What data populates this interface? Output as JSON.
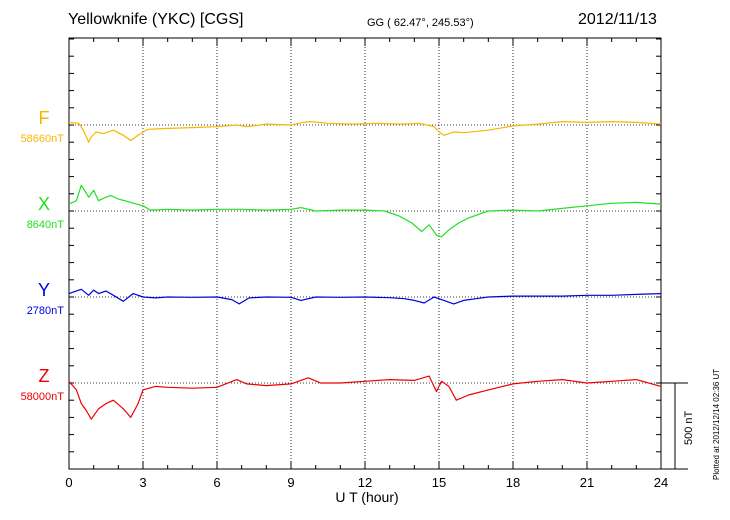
{
  "header": {
    "station": "Yellowknife (YKC)  [CGS]",
    "coords": "GG ( 62.47°, 245.53°)",
    "date": "2012/11/13"
  },
  "plotted_note": "Plotted at 2012/12/14 02:36 UT",
  "chart_data": {
    "type": "line",
    "xlabel": "U T (hour)",
    "xlim": [
      0,
      24
    ],
    "xticks": [
      "0",
      "3",
      "6",
      "9",
      "12",
      "15",
      "18",
      "21",
      "24"
    ],
    "scale_bar_label": "500 nT",
    "scale_bar_nT": 500,
    "series": [
      {
        "name": "F",
        "baseline_label": "58660nT",
        "baseline_nT": 58660,
        "color": "#f5b800",
        "x": [
          0,
          0.4,
          0.6,
          0.8,
          0.9,
          1.1,
          1.4,
          1.8,
          2.2,
          2.5,
          2.8,
          3.2,
          4,
          5,
          6,
          6.8,
          7.2,
          8,
          9,
          9.5,
          9.8,
          10.5,
          11.5,
          12.5,
          13.5,
          14.2,
          14.8,
          15.0,
          15.2,
          15.6,
          16.0,
          17,
          18,
          19,
          20,
          21,
          22,
          23,
          24
        ],
        "y": [
          58675,
          58670,
          58625,
          58560,
          58590,
          58620,
          58610,
          58630,
          58600,
          58570,
          58600,
          58635,
          58640,
          58645,
          58650,
          58660,
          58650,
          58665,
          58660,
          58675,
          58680,
          58670,
          58665,
          58670,
          58665,
          58670,
          58650,
          58620,
          58600,
          58620,
          58615,
          58630,
          58655,
          58665,
          58680,
          58675,
          58680,
          58675,
          58665
        ]
      },
      {
        "name": "X",
        "baseline_label": "8640nT",
        "baseline_nT": 8640,
        "color": "#22e022",
        "x": [
          0,
          0.3,
          0.5,
          0.8,
          1.0,
          1.2,
          1.5,
          1.7,
          2.0,
          2.5,
          3.0,
          3.3,
          4,
          5,
          6,
          7,
          8,
          9,
          9.4,
          10,
          11,
          12,
          12.8,
          13.4,
          13.9,
          14.3,
          14.6,
          14.9,
          15.1,
          15.4,
          15.8,
          16.2,
          17,
          18,
          19,
          20,
          21,
          22,
          23,
          24
        ],
        "y": [
          8680,
          8700,
          8790,
          8720,
          8760,
          8700,
          8720,
          8730,
          8710,
          8690,
          8670,
          8645,
          8650,
          8645,
          8650,
          8650,
          8645,
          8650,
          8660,
          8640,
          8645,
          8645,
          8640,
          8610,
          8570,
          8520,
          8560,
          8500,
          8490,
          8530,
          8570,
          8600,
          8640,
          8645,
          8640,
          8655,
          8670,
          8685,
          8690,
          8680
        ]
      },
      {
        "name": "Y",
        "baseline_label": "2780nT",
        "baseline_nT": 2780,
        "color": "#0000dd",
        "x": [
          0,
          0.5,
          0.8,
          1.0,
          1.2,
          1.5,
          1.8,
          2.2,
          2.6,
          3.0,
          3.5,
          4,
          5,
          6,
          6.6,
          6.9,
          7.3,
          8,
          9,
          9.4,
          10,
          11,
          12,
          13,
          13.6,
          14.0,
          14.4,
          14.8,
          15.2,
          15.6,
          16.0,
          16.5,
          17,
          18,
          19,
          20,
          21,
          22,
          23,
          24
        ],
        "y": [
          2800,
          2825,
          2790,
          2820,
          2800,
          2815,
          2790,
          2755,
          2800,
          2780,
          2775,
          2780,
          2778,
          2780,
          2765,
          2740,
          2775,
          2780,
          2778,
          2760,
          2780,
          2778,
          2780,
          2776,
          2770,
          2760,
          2745,
          2780,
          2760,
          2740,
          2760,
          2770,
          2780,
          2785,
          2785,
          2785,
          2790,
          2790,
          2795,
          2800
        ]
      },
      {
        "name": "Z",
        "baseline_label": "58000nT",
        "baseline_nT": 58000,
        "color": "#ee0000",
        "x": [
          0,
          0.3,
          0.5,
          0.7,
          0.9,
          1.2,
          1.5,
          1.8,
          2.2,
          2.5,
          2.8,
          3.0,
          3.5,
          4,
          5,
          6,
          6.8,
          7.2,
          8,
          9,
          9.7,
          10.2,
          11,
          12,
          13,
          14.0,
          14.6,
          14.9,
          15.1,
          15.4,
          15.7,
          16.2,
          17,
          18,
          19,
          20,
          21,
          22,
          23,
          24
        ],
        "y": [
          58010,
          57960,
          57880,
          57840,
          57790,
          57850,
          57880,
          57900,
          57850,
          57800,
          57880,
          57960,
          57980,
          57975,
          57970,
          57975,
          58020,
          57995,
          57985,
          57995,
          58030,
          58000,
          58000,
          58010,
          58020,
          58015,
          58040,
          57950,
          58010,
          57980,
          57900,
          57930,
          57960,
          57995,
          58010,
          58020,
          58000,
          58010,
          58020,
          57980
        ]
      }
    ]
  }
}
